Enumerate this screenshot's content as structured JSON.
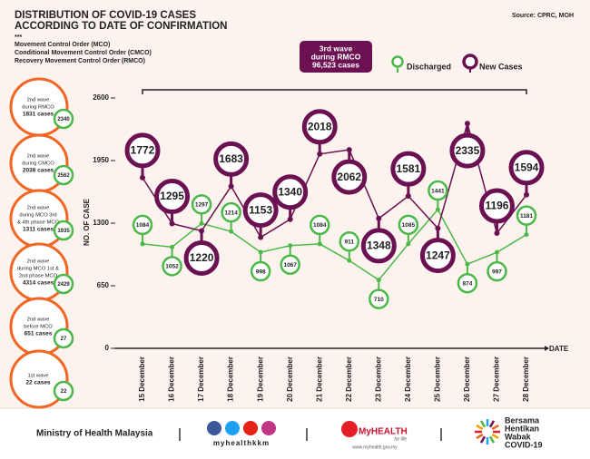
{
  "header": {
    "title": [
      "DISTRIBUTION OF COVID-19 CASES",
      "ACCORDING TO DATE OF CONFIRMATION"
    ],
    "mark": "***",
    "notes": [
      "Movement Control Order (MCO)",
      "Conditional Movement Control Order (CMCO)",
      "Recovery Movement Control Order (RMCO)"
    ],
    "source": "Source: CPRC, MOH"
  },
  "waves": [
    {
      "label": [
        "2nd wave",
        "during RMCO",
        "1831 cases"
      ],
      "badge": 2340
    },
    {
      "label": [
        "2nd wave",
        "during CMCO",
        "2038 cases"
      ],
      "badge": 2562
    },
    {
      "label": [
        "2nd wave",
        "during MCO 3rd",
        "& 4th phase MCO",
        "1311 cases"
      ],
      "badge": 1935
    },
    {
      "label": [
        "2nd wave",
        "during MCO 1st &",
        "2nd phase MCO",
        "4314 cases"
      ],
      "badge": 2429
    },
    {
      "label": [
        "2nd wave",
        "before MCO",
        "651 cases"
      ],
      "badge": 27
    },
    {
      "label": [
        "1st wave",
        "22 cases"
      ],
      "badge": 22
    }
  ],
  "chart_data": {
    "type": "line",
    "ylabel": "NO. OF CASE",
    "xlabel": "DATE",
    "annotation": [
      "3rd wave",
      "during RMCO",
      "96,523 cases"
    ],
    "categories": [
      "15 December",
      "16 December",
      "17 December",
      "18 December",
      "19 December",
      "20 December",
      "21 December",
      "22 December",
      "23 December",
      "24 December",
      "25 December",
      "26 December",
      "27 December",
      "28 December"
    ],
    "series": [
      {
        "name": "Discharged",
        "color": "#4cb848",
        "values": [
          1084,
          1052,
          1297,
          1214,
          998,
          1067,
          1084,
          911,
          710,
          1085,
          1441,
          874,
          997,
          1181
        ]
      },
      {
        "name": "New Cases",
        "color": "#6b1152",
        "values": [
          1772,
          1295,
          1220,
          1683,
          1153,
          1340,
          2018,
          2062,
          1348,
          1581,
          1247,
          2335,
          1196,
          1594
        ]
      }
    ],
    "ylim": [
      0,
      2600
    ],
    "yticks": [
      0,
      650,
      1300,
      1950,
      2600
    ],
    "legend": "top-right"
  },
  "footer": {
    "ministry": "Ministry of Health Malaysia",
    "handle": "myhealthkkm",
    "brand": "MyHEALTH",
    "tagline": "for life",
    "url": "www.myhealth.gov.my",
    "campaign": [
      "Bersama",
      "Hentikan",
      "Wabak",
      "COVID-19"
    ]
  }
}
